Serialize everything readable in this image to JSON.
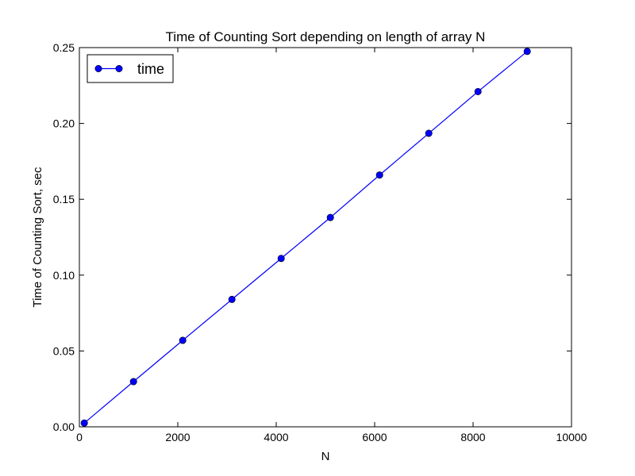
{
  "chart_data": {
    "type": "line",
    "title": "Time of Counting Sort depending on length of array N",
    "xlabel": "N",
    "ylabel": "Time of Counting Sort, sec",
    "xlim": [
      0,
      10000
    ],
    "ylim": [
      0,
      0.25
    ],
    "x_ticks": [
      0,
      2000,
      4000,
      6000,
      8000,
      10000
    ],
    "x_tick_labels": [
      "0",
      "2000",
      "4000",
      "6000",
      "8000",
      "10000"
    ],
    "y_ticks": [
      0,
      0.05,
      0.1,
      0.15,
      0.2,
      0.25
    ],
    "y_tick_labels": [
      "0.00",
      "0.05",
      "0.10",
      "0.15",
      "0.20",
      "0.25"
    ],
    "grid": false,
    "legend_position": "top-left",
    "series": [
      {
        "name": "time",
        "color": "#0000ff",
        "marker": "circle",
        "x": [
          100,
          1100,
          2100,
          3100,
          4100,
          5100,
          6100,
          7100,
          8100,
          9100
        ],
        "y": [
          0.0025,
          0.0298,
          0.057,
          0.084,
          0.111,
          0.138,
          0.166,
          0.1935,
          0.221,
          0.2475
        ]
      }
    ]
  }
}
